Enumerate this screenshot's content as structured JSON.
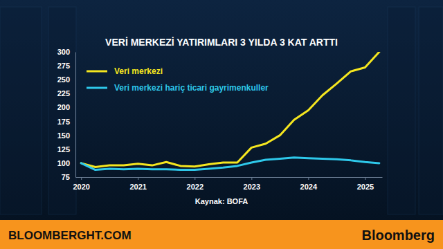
{
  "chart_data": {
    "type": "line",
    "title": "VERİ MERKEZİ YATIRIMLARI 3 YILDA 3 KAT ARTTI",
    "source": "Kaynak: BOFA",
    "x": [
      2020,
      2020.25,
      2020.5,
      2020.75,
      2021,
      2021.25,
      2021.5,
      2021.75,
      2022,
      2022.25,
      2022.5,
      2022.75,
      2023,
      2023.25,
      2023.5,
      2023.75,
      2024,
      2024.25,
      2024.5,
      2024.75,
      2025,
      2025.25
    ],
    "series": [
      {
        "name": "Veri merkezi",
        "color": "#f5e61f",
        "values": [
          100,
          93,
          96,
          96,
          99,
          96,
          102,
          95,
          94,
          98,
          101,
          101,
          128,
          135,
          150,
          178,
          195,
          222,
          243,
          265,
          272,
          300
        ]
      },
      {
        "name": "Veri merkezi hariç ticari gayrimenkuller",
        "color": "#2ec8ea",
        "values": [
          100,
          88,
          90,
          89,
          90,
          89,
          89,
          88,
          88,
          90,
          92,
          95,
          101,
          106,
          108,
          110,
          109,
          108,
          107,
          105,
          102,
          100
        ]
      }
    ],
    "xlim": [
      2019.9,
      2025.3
    ],
    "xticks": [
      2020,
      2021,
      2022,
      2023,
      2024,
      2025
    ],
    "ylim": [
      75,
      300
    ],
    "yticks": [
      75,
      100,
      125,
      150,
      175,
      200,
      225,
      250,
      275,
      300
    ],
    "grid": false,
    "legend": "upper left"
  },
  "footer": {
    "site": "BLOOMBERGHT.COM",
    "brand": "Bloomberg"
  }
}
